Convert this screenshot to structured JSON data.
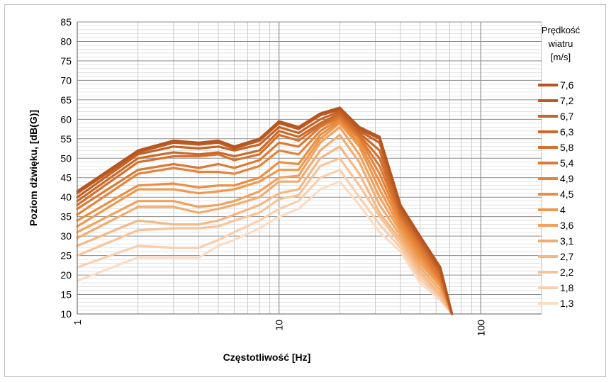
{
  "chart_data": {
    "type": "line",
    "xlabel": "Częstotliwość [Hz]",
    "ylabel": "Poziom dźwięku, [dB(G)]",
    "x_scale": "log",
    "xlim": [
      1,
      200
    ],
    "ylim": [
      10,
      85
    ],
    "yticks": [
      10,
      15,
      20,
      25,
      30,
      35,
      40,
      45,
      50,
      55,
      60,
      65,
      70,
      75,
      80,
      85
    ],
    "xticks": [
      1,
      10,
      100
    ],
    "grid": true,
    "legend": {
      "title_lines": [
        "Prędkość",
        "wiatru",
        "[m/s]"
      ],
      "placement": "right"
    },
    "x": [
      1,
      2,
      3,
      4,
      5,
      6,
      8,
      10,
      12.5,
      16,
      20,
      25,
      31.5,
      40,
      50,
      63,
      72
    ],
    "series": [
      {
        "name": "7,6",
        "color": "#b5561f",
        "values": [
          41.5,
          52,
          54.5,
          54,
          54.5,
          53,
          55,
          59.5,
          58,
          61.5,
          63,
          58,
          55.5,
          38,
          30,
          22,
          10
        ]
      },
      {
        "name": "7,2",
        "color": "#bd5b22",
        "values": [
          41,
          51.5,
          54,
          53.5,
          54,
          52.5,
          54.5,
          59,
          57.5,
          61,
          62.5,
          57.5,
          55,
          37.5,
          29.5,
          21.5,
          10
        ]
      },
      {
        "name": "6,7",
        "color": "#c56226",
        "values": [
          40,
          51,
          53,
          52.5,
          53,
          52,
          53.5,
          58,
          56.5,
          60,
          62,
          57,
          54,
          37,
          29,
          21,
          10
        ]
      },
      {
        "name": "6,3",
        "color": "#cc692a",
        "values": [
          39,
          50,
          51.5,
          51,
          51.5,
          50.5,
          52,
          57,
          55.5,
          59,
          61.5,
          56.5,
          52,
          36,
          28.5,
          20.5,
          10
        ]
      },
      {
        "name": "5,8",
        "color": "#d4712e",
        "values": [
          38,
          49,
          50.5,
          50.5,
          51,
          49.5,
          51,
          56,
          54.5,
          58.5,
          61,
          56,
          50,
          35.5,
          28,
          20,
          10
        ]
      },
      {
        "name": "5,4",
        "color": "#dc7a33",
        "values": [
          37,
          47,
          48.5,
          47.5,
          48.5,
          47.5,
          49.5,
          54,
          53,
          58,
          60.5,
          55.5,
          48,
          35,
          27,
          19,
          10
        ]
      },
      {
        "name": "4,9",
        "color": "#e4843a",
        "values": [
          35.5,
          46,
          47.5,
          46.5,
          46.5,
          46,
          48,
          52,
          51,
          57,
          60,
          55,
          46,
          34,
          26,
          18.5,
          10
        ]
      },
      {
        "name": "4,5",
        "color": "#eb8e41",
        "values": [
          34,
          43,
          43.5,
          42.5,
          43,
          43,
          45,
          49,
          48.5,
          56,
          59.5,
          54,
          44,
          33,
          25,
          18,
          10
        ]
      },
      {
        "name": "4",
        "color": "#ef984e",
        "values": [
          32.5,
          42,
          42,
          41,
          41.5,
          42,
          44,
          47,
          47,
          55,
          59,
          53,
          42,
          32,
          24,
          17.5,
          10
        ]
      },
      {
        "name": "3,6",
        "color": "#f1a25e",
        "values": [
          31,
          39,
          39,
          37.5,
          38,
          39,
          41.5,
          45,
          45.5,
          54,
          58,
          51,
          40,
          31,
          23,
          17,
          10
        ]
      },
      {
        "name": "3,1",
        "color": "#f3ac70",
        "values": [
          29.5,
          37.5,
          37.5,
          36,
          37,
          38,
          40,
          44,
          44,
          52,
          56,
          49,
          38,
          30,
          22,
          16,
          10
        ]
      },
      {
        "name": "2,7",
        "color": "#f5b784",
        "values": [
          27.5,
          34,
          33,
          33,
          34,
          35.5,
          38,
          41,
          42,
          50,
          53,
          46,
          36,
          29,
          21,
          15,
          10
        ]
      },
      {
        "name": "2,2",
        "color": "#f7c399",
        "values": [
          25,
          31.5,
          32,
          32,
          32.5,
          34,
          36,
          39.5,
          40.5,
          48,
          50,
          43,
          35,
          28,
          20,
          14.5,
          10
        ]
      },
      {
        "name": "1,8",
        "color": "#f9cfae",
        "values": [
          22,
          27.5,
          27,
          27,
          29,
          31,
          34,
          37,
          39,
          45,
          47,
          40,
          33,
          27,
          19,
          14,
          10
        ]
      },
      {
        "name": "1,3",
        "color": "#fbdcc4",
        "values": [
          18.5,
          24.5,
          24.5,
          24.5,
          27.5,
          29,
          32,
          35,
          37,
          42,
          44,
          38,
          31,
          26,
          18,
          13.5,
          10
        ]
      }
    ]
  }
}
